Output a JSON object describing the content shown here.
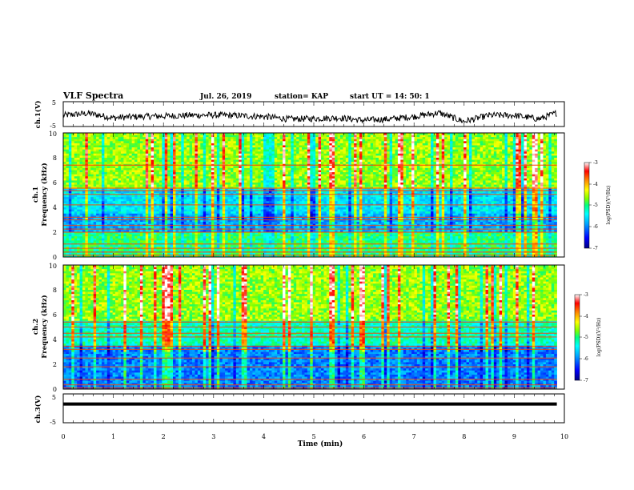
{
  "header": {
    "title": "VLF Spectra",
    "date": "Jul. 26, 2019",
    "station": "station= KAP",
    "start_ut": "start UT =  14: 50: 1"
  },
  "chart_data": [
    {
      "type": "line",
      "panel": "ch1-waveform",
      "ylabel": "ch.1(V)",
      "ylim": [
        -5,
        5
      ],
      "y_ticks": [
        5,
        -5
      ],
      "xlim": [
        0,
        10
      ],
      "trace_color": "#000000",
      "x": [
        0,
        0.5,
        1,
        1.5,
        2,
        2.5,
        3,
        3.5,
        4,
        4.5,
        5,
        5.5,
        6,
        6.5,
        7,
        7.5,
        8,
        8.5,
        9,
        9.5,
        9.85
      ],
      "y": [
        -0.5,
        0.3,
        -1.5,
        -1.0,
        -0.8,
        -0.5,
        -0.4,
        -0.6,
        -1.0,
        -2.0,
        -1.8,
        -1.5,
        -2.5,
        -2.0,
        -1.0,
        0.5,
        -3.0,
        -0.5,
        -0.5,
        -2.0,
        0.5
      ]
    },
    {
      "type": "heatmap",
      "panel": "ch1-spectrogram",
      "ylabel": "ch.1",
      "ylabel2": "Frequency (kHz)",
      "ylim": [
        0,
        10
      ],
      "y_ticks": [
        0,
        2,
        4,
        6,
        8,
        10
      ],
      "xlim": [
        0,
        10
      ],
      "colorbar": {
        "label": "log(PSD)(V²/Hz)",
        "range": [
          -7,
          -3
        ],
        "ticks": [
          "-3",
          "-4",
          "-5",
          "-6",
          "-7"
        ],
        "stops": [
          "#000080",
          "#0000ff",
          "#00a0ff",
          "#00ffff",
          "#00ff80",
          "#80ff00",
          "#ffff00",
          "#ff8000",
          "#ff0000",
          "#ffffff"
        ]
      },
      "base_levels": {
        "0-2kHz": -5.0,
        "2-3.5kHz": -5.8,
        "3.5-5.5kHz": -5.5,
        "5.5-10kHz": -4.6
      },
      "bright_bands_khz": [
        0.15,
        0.4,
        0.7,
        1.05,
        2.0,
        2.25,
        2.55,
        3.0,
        3.2,
        4.2,
        5.05,
        5.35,
        5.55,
        7.4
      ]
    },
    {
      "type": "heatmap",
      "panel": "ch2-spectrogram",
      "ylabel": "ch.2",
      "ylabel2": "Frequency (kHz)",
      "ylim": [
        0,
        10
      ],
      "y_ticks": [
        0,
        2,
        4,
        6,
        8,
        10
      ],
      "xlim": [
        0,
        10
      ],
      "colorbar": {
        "label": "log(PSD)(V²/Hz)",
        "range": [
          -7,
          -3
        ],
        "ticks": [
          "-3",
          "-4",
          "-5",
          "-6",
          "-7"
        ],
        "stops": [
          "#000080",
          "#0000ff",
          "#00a0ff",
          "#00ffff",
          "#00ff80",
          "#80ff00",
          "#ffff00",
          "#ff8000",
          "#ff0000",
          "#ffffff"
        ]
      },
      "base_levels": {
        "0-3.5kHz": -6.0,
        "3.5-5.5kHz": -5.2,
        "5.5-10kHz": -4.6
      },
      "bright_bands_khz": [
        0.1,
        0.35,
        0.8,
        1.8,
        2.5,
        3.2,
        3.45,
        4.2,
        4.5,
        5.0,
        5.4
      ]
    },
    {
      "type": "line",
      "panel": "ch3-waveform",
      "ylabel": "ch.3(V)",
      "ylim": [
        -5,
        5
      ],
      "y_ticks": [
        5,
        -5
      ],
      "xlim": [
        0,
        10
      ],
      "xlabel": "Time (min)",
      "x_ticks": [
        0,
        1,
        2,
        3,
        4,
        5,
        6,
        7,
        8,
        9,
        10
      ],
      "trace_color": "#000000",
      "x": [
        0,
        9.85
      ],
      "y": [
        1.5,
        1.5
      ]
    }
  ]
}
